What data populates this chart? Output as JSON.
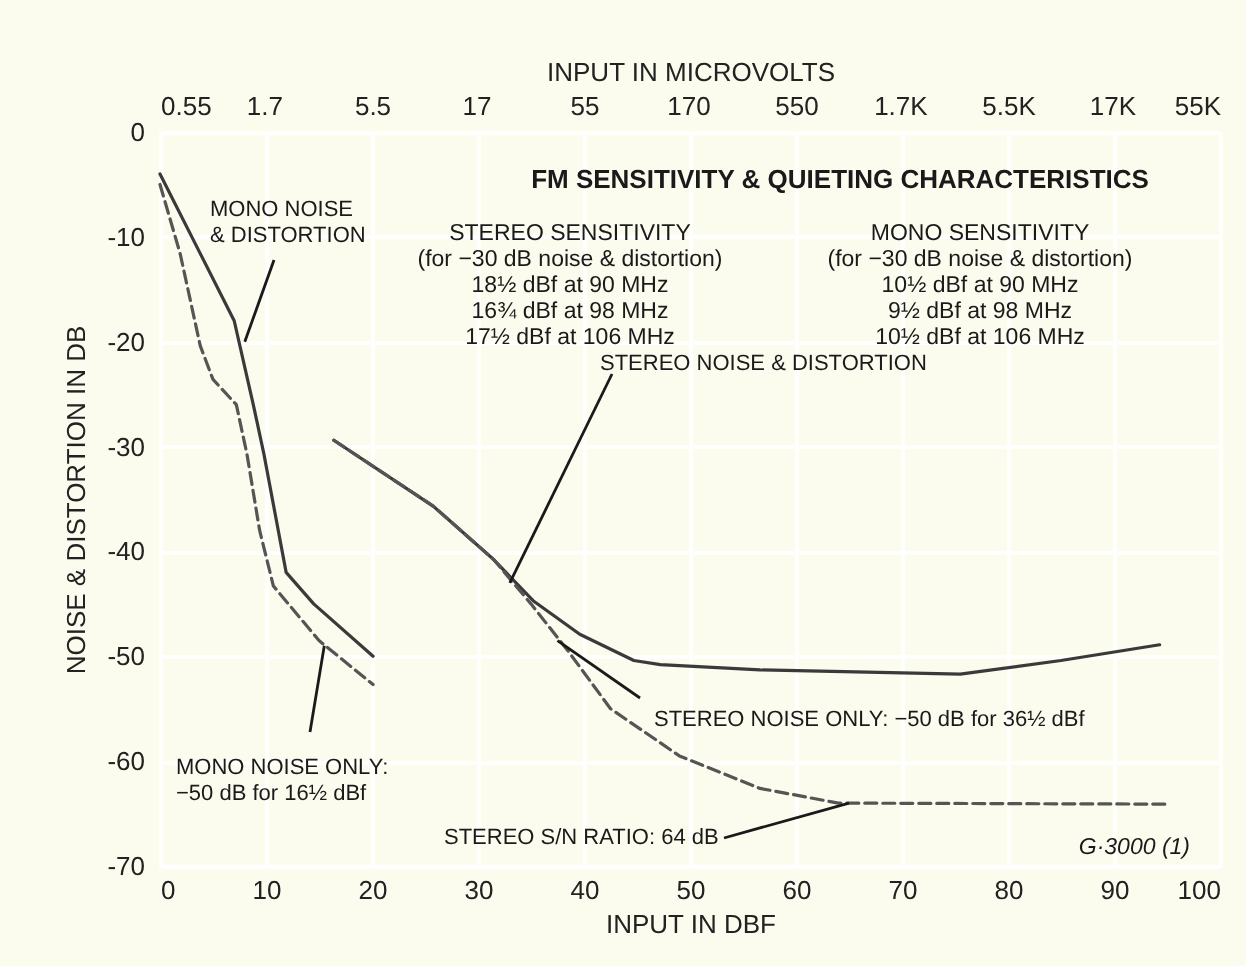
{
  "chart_data": {
    "type": "line",
    "title": "FM SENSITIVITY & QUIETING CHARACTERISTICS",
    "xlabel": "INPUT IN DBF",
    "ylabel": "NOISE & DISTORTION IN DB",
    "x2label": "INPUT IN MICROVOLTS",
    "xlim": [
      0,
      100
    ],
    "xticks": [
      0,
      10,
      20,
      30,
      40,
      50,
      60,
      70,
      80,
      90,
      100
    ],
    "x2lim": [
      0.55,
      55000
    ],
    "log": "x2",
    "x2ticks": [
      0.55,
      1.7,
      5.5,
      17,
      55,
      170,
      550,
      {
        "value": 1700,
        "label": "1.7K"
      },
      {
        "value": 5500,
        "label": "5.5K"
      },
      {
        "value": 17000,
        "label": "17K"
      },
      {
        "value": 55000,
        "label": "55K"
      }
    ],
    "ylim": [
      -70,
      0
    ],
    "yticks": [
      0,
      -10,
      -20,
      -30,
      -40,
      -50,
      -60,
      -70
    ],
    "grid": true,
    "marker": "none",
    "series": [
      {
        "color": "#3a3a3a",
        "line_style": "solid",
        "x": [
          0,
          3.8,
          7,
          8.8,
          9.8,
          11.9,
          14.5,
          20.1
        ],
        "values": [
          -4,
          -11.6,
          -18,
          -26,
          -30.7,
          -42,
          -45,
          -50
        ]
      },
      {
        "color": "#555555",
        "line_style": "dashed",
        "x": [
          0,
          1.9,
          3.8,
          5,
          7.2,
          8.2,
          9.4,
          10.7,
          15,
          20.1
        ],
        "values": [
          -5,
          -11.6,
          -20.4,
          -23.6,
          -26,
          -30.7,
          -38,
          -43.3,
          -48.5,
          -52.7
        ]
      },
      {
        "color": "#3a3a3a",
        "line_style": "solid",
        "x": [
          16.4,
          25.8,
          31.5,
          35.2,
          39.6,
          44.7,
          47.2,
          56.6,
          75.5,
          85,
          94.3
        ],
        "values": [
          -29.4,
          -35.7,
          -40.8,
          -44.7,
          -47.9,
          -50.4,
          -50.8,
          -51.3,
          -51.7,
          -50.4,
          -48.9
        ]
      },
      {
        "color": "#555555",
        "line_style": "dashed",
        "x": [
          16.4,
          25.8,
          31.5,
          35,
          38.5,
          42.5,
          49,
          56.6,
          64,
          95
        ],
        "values": [
          -29.4,
          -35.7,
          -40.8,
          -45,
          -49.5,
          -55,
          -59.5,
          -62.6,
          -64,
          -64.1
        ]
      }
    ],
    "annotations": [
      "STEREO SENSITIVITY\n(for −30 dB noise & distortion)\n18½ dBf at 90 MHz\n16¾ dBf at 98 MHz\n17½ dBf at 106 MHz",
      "MONO SENSITIVITY\n(for −30 dB noise & distortion)\n10½ dBf at 90 MHz\n9½ dBf at 98 MHz\n10½ dBf at 106 MHz",
      "G·3000 (1)",
      {
        "text": "MONO NOISE\n& DISTORTION",
        "x": 8,
        "y": -20
      },
      {
        "text": "MONO NOISE ONLY:\n−50 dB for 16½ dBf",
        "x": 15.5,
        "y": -49
      },
      {
        "text": "STEREO NOISE & DISTORTION",
        "x": 33,
        "y": -43
      },
      {
        "text": "STEREO NOISE ONLY: −50 dB for 36½ dBf",
        "x": 37.5,
        "y": -48.5
      },
      {
        "text": "STEREO S/N RATIO: 64 dB",
        "x": 65,
        "y": -64
      }
    ]
  }
}
